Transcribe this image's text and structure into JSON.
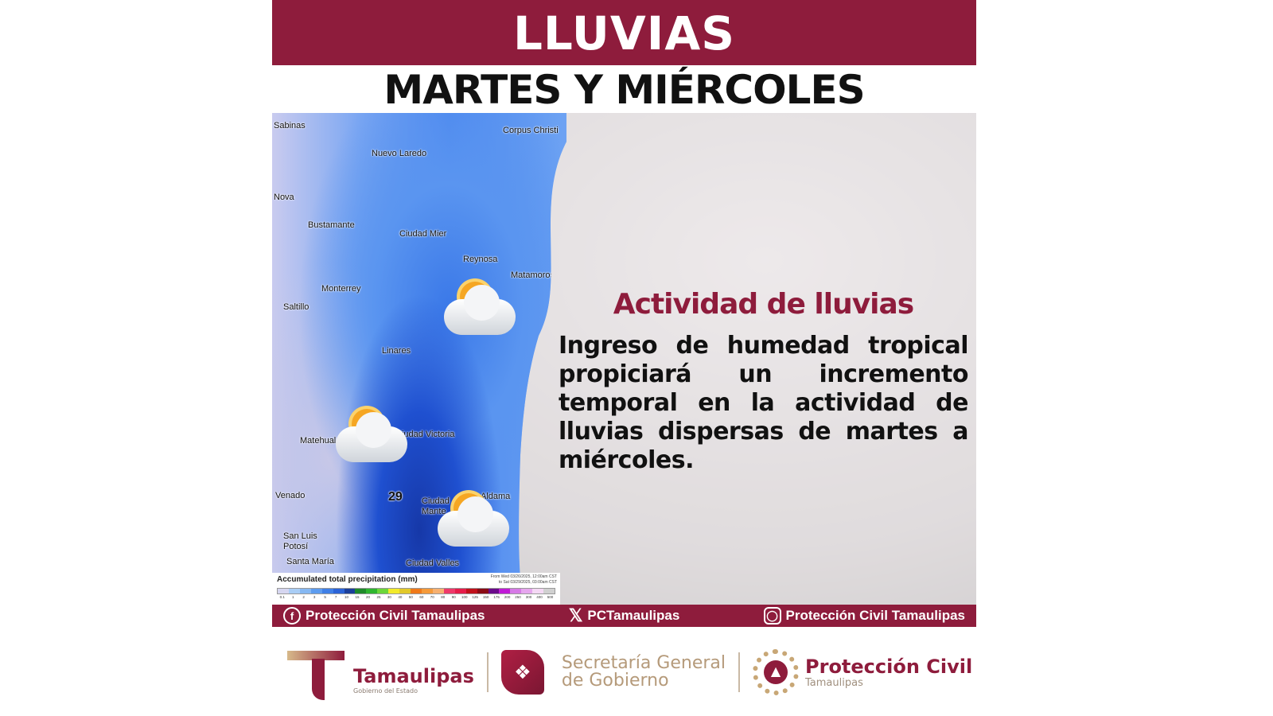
{
  "header": {
    "title": "LLUVIAS",
    "subtitle": "MARTES Y MIÉRCOLES"
  },
  "map": {
    "labels": [
      "Sabinas",
      "Nuevo Laredo",
      "Corpus Christi",
      "Nova",
      "Bustamante",
      "Ciudad Mier",
      "Reynosa",
      "Matamoros",
      "Monterrey",
      "Saltillo",
      "Linares",
      "Matehuala",
      "Ciudad Victoria",
      "Venado",
      "Ciudad Mante",
      "Aldama",
      "San Luis Potosí",
      "Santa María",
      "Ciudad Valles",
      "29"
    ],
    "weather_icons": [
      "partly-cloudy-rain-icon",
      "partly-cloudy-rain-icon",
      "partly-cloudy-rain-icon"
    ],
    "legend": {
      "title": "Accumulated total precipitation (mm)",
      "range_from": "From Wed 03/26/2025, 12:00am CST",
      "range_to": "to Sat 03/29/2025, 03:00am CST",
      "ticks": [
        "0.1",
        "1",
        "2",
        "3",
        "5",
        "7",
        "10",
        "15",
        "20",
        "25",
        "30",
        "40",
        "50",
        "60",
        "70",
        "80",
        "90",
        "100",
        "125",
        "150",
        "175",
        "200",
        "250",
        "300",
        "400",
        "500"
      ],
      "colors": [
        "#d6d6f0",
        "#a9cdf5",
        "#86b8f2",
        "#5d9cef",
        "#3f7fe6",
        "#2b63d6",
        "#1b3f9a",
        "#1f8a2a",
        "#2fb52f",
        "#6cd63a",
        "#f2ea2a",
        "#e2c82a",
        "#f07a1a",
        "#f59a3a",
        "#f6b070",
        "#ee3a6a",
        "#e61c4a",
        "#c0101a",
        "#8a0a14",
        "#6a0a8a",
        "#c01ad6",
        "#d67ae6",
        "#e6a6ee",
        "#f4d8f4",
        "#d0d0d0"
      ]
    }
  },
  "content": {
    "heading": "Actividad de lluvias",
    "body": "Ingreso de humedad tropical propiciará un incremento temporal en la actividad de lluvias dispersas de martes a miércoles."
  },
  "social": [
    {
      "icon": "facebook-icon",
      "label": "Protección Civil Tamaulipas"
    },
    {
      "icon": "x-icon",
      "label": "PCTamaulipas"
    },
    {
      "icon": "instagram-icon",
      "label": "Protección Civil Tamaulipas"
    }
  ],
  "footer": {
    "tamaulipas": {
      "name": "Tamaulipas",
      "sub": "Gobierno del Estado"
    },
    "secretaria": {
      "line1": "Secretaría General",
      "line2": "de Gobierno"
    },
    "proteccion": {
      "name": "Protección Civil",
      "sub": "Tamaulipas"
    }
  },
  "colors": {
    "brand": "#8e1c3c",
    "gold": "#c8a776"
  }
}
